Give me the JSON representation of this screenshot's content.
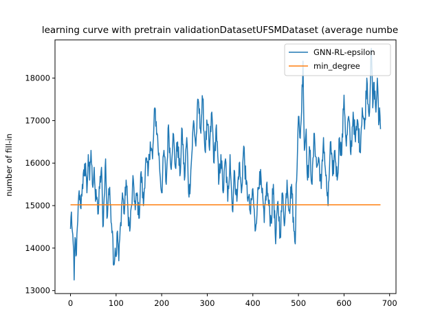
{
  "chart_data": {
    "type": "line",
    "title": "learning curve with pretrain validationDatasetUFSMDataset (average numbe",
    "xlabel": "",
    "ylabel": "number of fill-in",
    "xlim": [
      -34,
      714
    ],
    "ylim": [
      12930,
      18900
    ],
    "xticks": [
      0,
      100,
      200,
      300,
      400,
      500,
      600,
      700
    ],
    "xtick_labels": [
      "0",
      "100",
      "200",
      "300",
      "400",
      "500",
      "600",
      "700"
    ],
    "yticks": [
      13000,
      14000,
      15000,
      16000,
      17000,
      18000
    ],
    "ytick_labels": [
      "13000",
      "14000",
      "15000",
      "16000",
      "17000",
      "18000"
    ],
    "grid": false,
    "legend_position": "top-right",
    "series": [
      {
        "name": "GNN-RL-epsilon",
        "color": "#1f77b4",
        "anchors": [
          [
            0,
            14450
          ],
          [
            2,
            14850
          ],
          [
            4,
            14400
          ],
          [
            6,
            14100
          ],
          [
            8,
            13250
          ],
          [
            10,
            14250
          ],
          [
            13,
            13850
          ],
          [
            16,
            14650
          ],
          [
            19,
            15350
          ],
          [
            22,
            14950
          ],
          [
            26,
            15500
          ],
          [
            30,
            15700
          ],
          [
            33,
            16000
          ],
          [
            36,
            15300
          ],
          [
            39,
            16200
          ],
          [
            42,
            15600
          ],
          [
            45,
            16300
          ],
          [
            48,
            15500
          ],
          [
            52,
            15900
          ],
          [
            55,
            15100
          ],
          [
            58,
            15200
          ],
          [
            60,
            14800
          ],
          [
            64,
            15400
          ],
          [
            68,
            15900
          ],
          [
            71,
            14500
          ],
          [
            74,
            15200
          ],
          [
            77,
            16100
          ],
          [
            80,
            14700
          ],
          [
            84,
            15400
          ],
          [
            88,
            15000
          ],
          [
            92,
            14400
          ],
          [
            95,
            13600
          ],
          [
            98,
            14000
          ],
          [
            100,
            13800
          ],
          [
            103,
            14400
          ],
          [
            106,
            13700
          ],
          [
            110,
            14600
          ],
          [
            114,
            15300
          ],
          [
            118,
            14800
          ],
          [
            122,
            15600
          ],
          [
            126,
            14900
          ],
          [
            130,
            14400
          ],
          [
            134,
            15000
          ],
          [
            138,
            15600
          ],
          [
            142,
            14900
          ],
          [
            146,
            15300
          ],
          [
            150,
            14700
          ],
          [
            155,
            15800
          ],
          [
            160,
            15000
          ],
          [
            165,
            16100
          ],
          [
            170,
            15700
          ],
          [
            175,
            16500
          ],
          [
            180,
            16100
          ],
          [
            185,
            17300
          ],
          [
            190,
            16700
          ],
          [
            195,
            16000
          ],
          [
            200,
            15300
          ],
          [
            205,
            16300
          ],
          [
            210,
            15500
          ],
          [
            215,
            16900
          ],
          [
            220,
            15900
          ],
          [
            225,
            16700
          ],
          [
            230,
            15900
          ],
          [
            235,
            16500
          ],
          [
            240,
            15700
          ],
          [
            245,
            16800
          ],
          [
            250,
            15600
          ],
          [
            255,
            16600
          ],
          [
            260,
            15200
          ],
          [
            265,
            16000
          ],
          [
            270,
            17000
          ],
          [
            275,
            16400
          ],
          [
            280,
            17500
          ],
          [
            285,
            16800
          ],
          [
            290,
            17500
          ],
          [
            295,
            16300
          ],
          [
            300,
            16900
          ],
          [
            305,
            16300
          ],
          [
            310,
            17200
          ],
          [
            315,
            16000
          ],
          [
            320,
            16900
          ],
          [
            325,
            15500
          ],
          [
            330,
            16200
          ],
          [
            335,
            15300
          ],
          [
            340,
            16100
          ],
          [
            345,
            15100
          ],
          [
            350,
            16200
          ],
          [
            355,
            14900
          ],
          [
            360,
            15800
          ],
          [
            365,
            15100
          ],
          [
            370,
            16000
          ],
          [
            375,
            15300
          ],
          [
            380,
            16400
          ],
          [
            385,
            15500
          ],
          [
            390,
            15200
          ],
          [
            395,
            14800
          ],
          [
            400,
            15400
          ],
          [
            405,
            14400
          ],
          [
            410,
            15100
          ],
          [
            415,
            15800
          ],
          [
            420,
            15300
          ],
          [
            425,
            14600
          ],
          [
            430,
            15500
          ],
          [
            435,
            15000
          ],
          [
            440,
            14600
          ],
          [
            445,
            15500
          ],
          [
            450,
            14100
          ],
          [
            455,
            15100
          ],
          [
            460,
            14300
          ],
          [
            465,
            15300
          ],
          [
            470,
            14600
          ],
          [
            475,
            15600
          ],
          [
            480,
            14900
          ],
          [
            485,
            15500
          ],
          [
            490,
            14400
          ],
          [
            493,
            14100
          ],
          [
            495,
            15500
          ],
          [
            498,
            16300
          ],
          [
            500,
            17100
          ],
          [
            503,
            16600
          ],
          [
            506,
            17000
          ],
          [
            510,
            18400
          ],
          [
            513,
            16300
          ],
          [
            517,
            16800
          ],
          [
            520,
            15600
          ],
          [
            525,
            16300
          ],
          [
            530,
            15500
          ],
          [
            535,
            16700
          ],
          [
            540,
            15900
          ],
          [
            545,
            16100
          ],
          [
            550,
            15400
          ],
          [
            555,
            16600
          ],
          [
            560,
            15700
          ],
          [
            565,
            15000
          ],
          [
            570,
            16500
          ],
          [
            575,
            15700
          ],
          [
            580,
            16300
          ],
          [
            585,
            15600
          ],
          [
            590,
            16600
          ],
          [
            595,
            16200
          ],
          [
            600,
            17600
          ],
          [
            605,
            16400
          ],
          [
            610,
            17100
          ],
          [
            615,
            16200
          ],
          [
            620,
            17200
          ],
          [
            625,
            16500
          ],
          [
            630,
            17000
          ],
          [
            635,
            16300
          ],
          [
            640,
            17300
          ],
          [
            645,
            16800
          ],
          [
            650,
            18000
          ],
          [
            655,
            17100
          ],
          [
            660,
            18700
          ],
          [
            663,
            17300
          ],
          [
            666,
            17900
          ],
          [
            670,
            17200
          ],
          [
            673,
            18000
          ],
          [
            676,
            16900
          ],
          [
            678,
            17300
          ],
          [
            680,
            16800
          ]
        ]
      },
      {
        "name": "min_degree",
        "color": "#ff7f0e",
        "x": [
          0,
          680
        ],
        "y": [
          15020,
          15020
        ]
      }
    ]
  }
}
